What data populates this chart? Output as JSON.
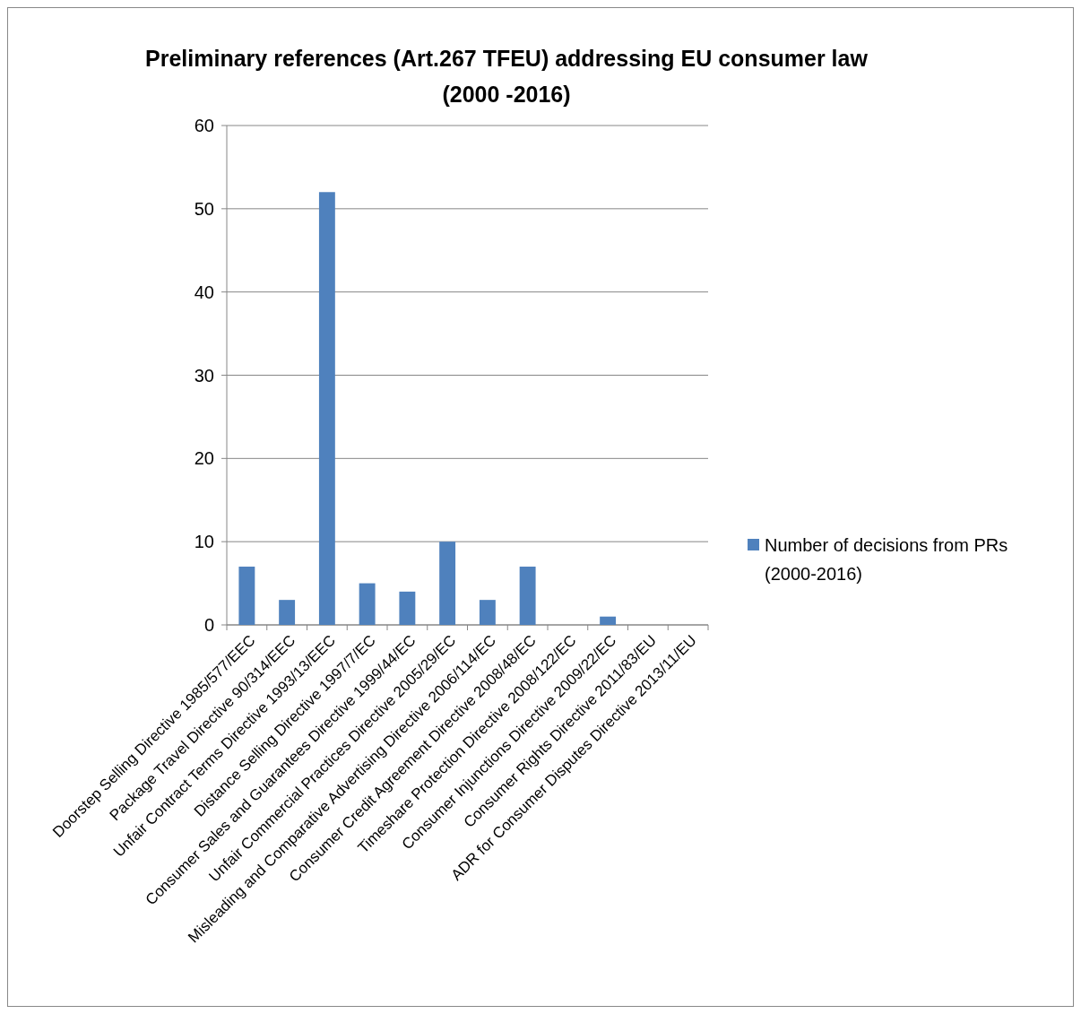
{
  "chart_data": {
    "type": "bar",
    "title": "Preliminary references (Art.267 TFEU) addressing EU consumer law (2000 -2016)",
    "categories": [
      "Doorstep Selling Directive 1985/577/EEC",
      "Package Travel Directive 90/314/EEC",
      "Unfair Contract Terms Directive 1993/13/EEC",
      "Distance Selling Directive 1997/7/EC",
      "Consumer Sales and Guarantees Directive 1999/44/EC",
      "Unfair Commercial Practices Directive 2005/29/EC",
      "Misleading and Comparative Advertising Directive 2006/114/EC",
      "Consumer Credit Agreement Directive 2008/48/EC",
      "Timeshare Protection Directive 2008/122/EC",
      "Consumer Injunctions Directive 2009/22/EC",
      "Consumer Rights Directive 2011/83/EU",
      "ADR for Consumer Disputes Directive 2013/11/EU"
    ],
    "series": [
      {
        "name": "Number of decisions from PRs (2000-2016)",
        "color": "#4f81bd",
        "values": [
          7,
          3,
          52,
          5,
          4,
          10,
          3,
          7,
          0,
          1,
          0,
          0
        ]
      }
    ],
    "ylim": [
      0,
      60
    ],
    "yticks": [
      0,
      10,
      20,
      30,
      40,
      50,
      60
    ],
    "grid": "y",
    "legend": "right"
  }
}
